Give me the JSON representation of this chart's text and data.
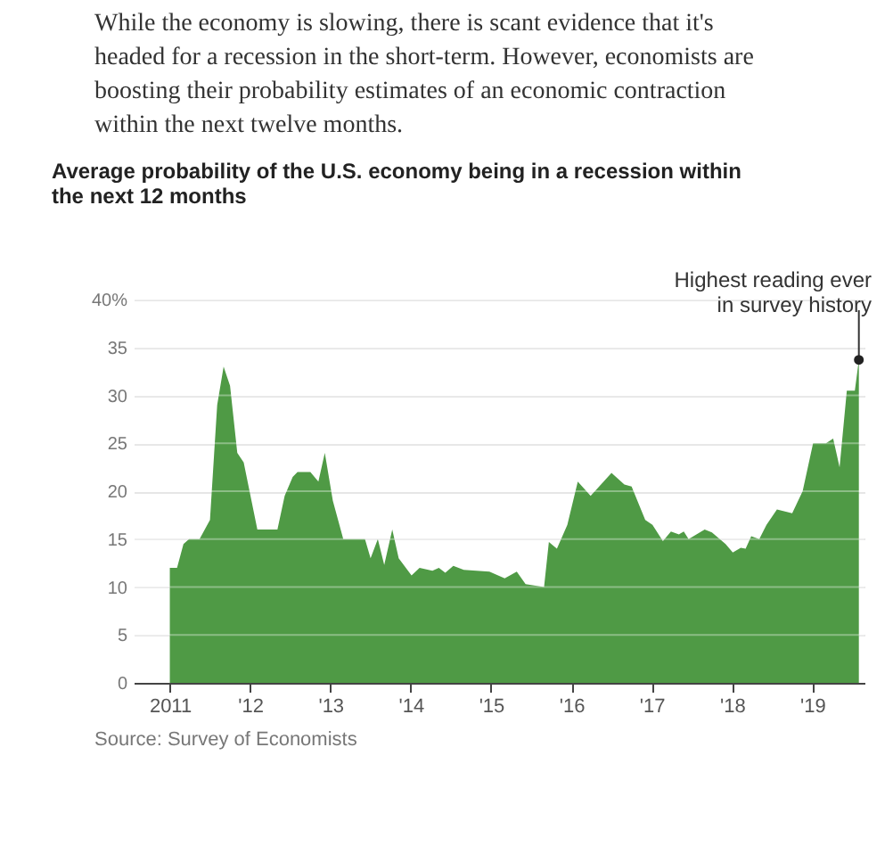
{
  "chart_data": {
    "type": "area",
    "title": "Average probability of the U.S. economy being in a recession within the next 12 months",
    "annotations": [
      "While the economy is slowing, there is scant evidence that it's headed for a recession in the short-term. However, economists are boosting their probability estimates of an economic contraction within the next twelve months.",
      {
        "text": "Highest reading ever in survey history",
        "x": 2019.58,
        "y": 33.7
      },
      "Source: Survey of Economists"
    ],
    "x": [
      2011.0,
      2011.09,
      2011.17,
      2011.24,
      2011.37,
      2011.5,
      2011.59,
      2011.67,
      2011.75,
      2011.84,
      2011.92,
      2012.09,
      2012.34,
      2012.43,
      2012.53,
      2012.59,
      2012.75,
      2012.85,
      2012.93,
      2013.03,
      2013.16,
      2013.43,
      2013.5,
      2013.59,
      2013.67,
      2013.77,
      2013.85,
      2014.01,
      2014.11,
      2014.27,
      2014.35,
      2014.43,
      2014.53,
      2014.66,
      2014.98,
      2015.17,
      2015.32,
      2015.43,
      2015.66,
      2015.72,
      2015.82,
      2015.95,
      2016.08,
      2016.24,
      2016.5,
      2016.66,
      2016.75,
      2016.92,
      2017.01,
      2017.14,
      2017.24,
      2017.34,
      2017.4,
      2017.46,
      2017.66,
      2017.75,
      2017.92,
      2018.01,
      2018.11,
      2018.17,
      2018.24,
      2018.34,
      2018.43,
      2018.56,
      2018.75,
      2018.88,
      2019.01,
      2019.17,
      2019.26,
      2019.34,
      2019.43,
      2019.53,
      2019.58
    ],
    "series": [
      {
        "color": "#4f9a45",
        "values": [
          12,
          12,
          14.5,
          15,
          15,
          17,
          29,
          33,
          31,
          24,
          23,
          16,
          16,
          19.5,
          21.5,
          22,
          22,
          21,
          24,
          19,
          15,
          15,
          13,
          15,
          12.3,
          16,
          13,
          11.2,
          12,
          11.7,
          12,
          11.5,
          12.2,
          11.8,
          11.6,
          10.9,
          11.6,
          10.3,
          10,
          14.7,
          14,
          16.5,
          21,
          19.5,
          21.9,
          20.7,
          20.5,
          17,
          16.5,
          14.8,
          15.8,
          15.5,
          15.8,
          15,
          16,
          15.7,
          14.5,
          13.6,
          14.1,
          14,
          15.3,
          15,
          16.5,
          18.1,
          17.7,
          20,
          25,
          25,
          25.5,
          22.5,
          30.5,
          30.5,
          33.7
        ]
      }
    ],
    "xlim": [
      2010.55,
      2019.65
    ],
    "xticks": [
      {
        "value": 2011,
        "label": "2011"
      },
      {
        "value": 2012,
        "label": "'12"
      },
      {
        "value": 2013,
        "label": "'13"
      },
      {
        "value": 2014,
        "label": "'14"
      },
      {
        "value": 2015,
        "label": "'15"
      },
      {
        "value": 2016,
        "label": "'16"
      },
      {
        "value": 2017,
        "label": "'17"
      },
      {
        "value": 2018,
        "label": "'18"
      },
      {
        "value": 2019,
        "label": "'19"
      }
    ],
    "ylim": [
      0,
      40
    ],
    "yticks": [
      0,
      5,
      10,
      15,
      20,
      25,
      30,
      35,
      {
        "value": 40,
        "label": "40%"
      }
    ],
    "grid": "y"
  }
}
